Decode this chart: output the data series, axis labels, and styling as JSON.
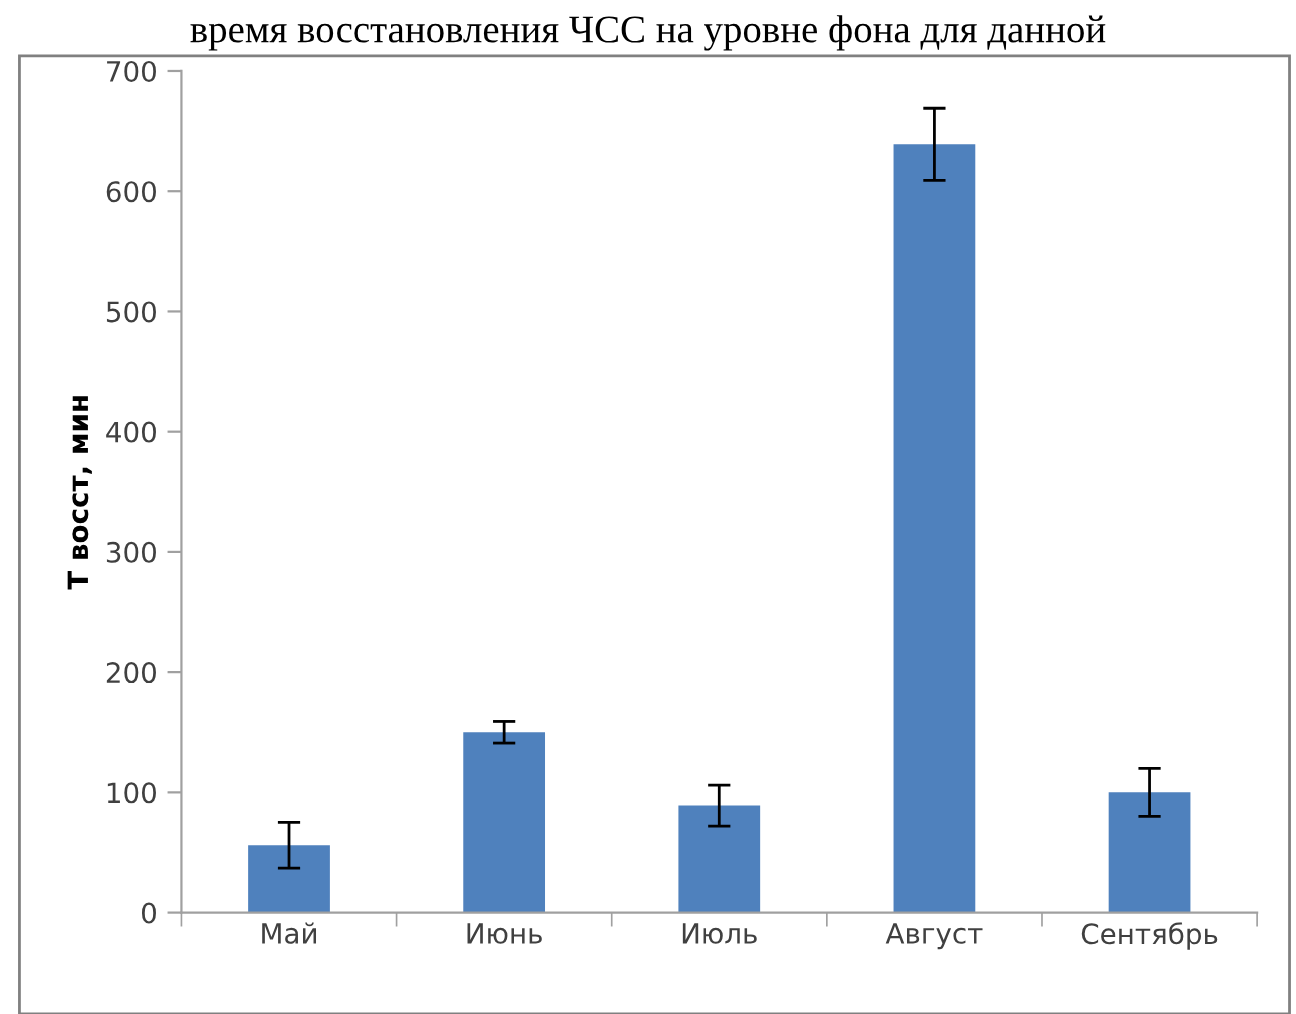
{
  "chart_data": {
    "type": "bar",
    "title": "время восстановления ЧСС на уровне фона для данной",
    "ylabel": "T восст, мин",
    "categories": [
      "Май",
      "Июнь",
      "Июль",
      "Август",
      "Сентябрь"
    ],
    "values": [
      56,
      150,
      89,
      639,
      100
    ],
    "errors": [
      19,
      9,
      17,
      30,
      20
    ],
    "color": "#4f81bd",
    "ylim": [
      0,
      700
    ],
    "yticks": [
      0,
      100,
      200,
      300,
      400,
      500,
      600,
      700
    ],
    "grid": false
  }
}
